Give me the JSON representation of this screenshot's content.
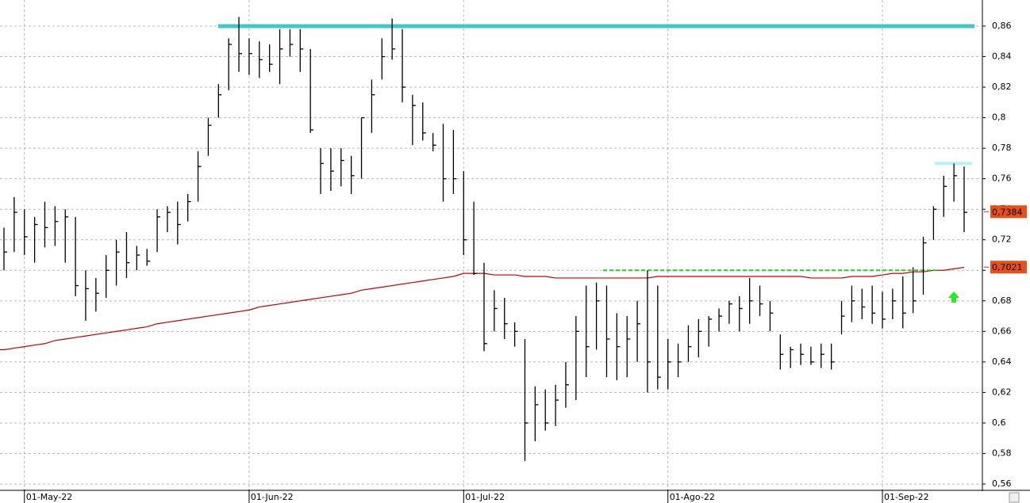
{
  "chart_data": {
    "type": "ohlc",
    "categories": [
      null,
      null,
      "01-May-22",
      null,
      null,
      null,
      null,
      null,
      null,
      null,
      null,
      null,
      null,
      null,
      null,
      null,
      null,
      null,
      null,
      null,
      null,
      null,
      null,
      null,
      "01-Jun-22",
      null,
      null,
      null,
      null,
      null,
      null,
      null,
      null,
      null,
      null,
      null,
      null,
      null,
      null,
      null,
      null,
      null,
      null,
      null,
      null,
      "01-Jul-22",
      null,
      null,
      null,
      null,
      null,
      null,
      null,
      null,
      null,
      null,
      null,
      null,
      null,
      null,
      null,
      null,
      null,
      null,
      null,
      "01-Ago-22",
      null,
      null,
      null,
      null,
      null,
      null,
      null,
      null,
      null,
      null,
      null,
      null,
      null,
      null,
      null,
      null,
      null,
      null,
      null,
      null,
      "01-Sep-22",
      null,
      null,
      null,
      null,
      null,
      null,
      null,
      null
    ],
    "bars": {
      "color": "#000000",
      "high": [
        0.728,
        0.748,
        0.74,
        0.735,
        0.745,
        0.742,
        0.74,
        0.735,
        0.7,
        0.695,
        0.71,
        0.72,
        0.725,
        0.716,
        0.714,
        0.74,
        0.742,
        0.745,
        0.75,
        0.778,
        0.8,
        0.822,
        0.852,
        0.866,
        0.852,
        0.85,
        0.848,
        0.858,
        0.858,
        0.858,
        0.845,
        0.78,
        0.78,
        0.78,
        0.775,
        0.8,
        0.825,
        0.852,
        0.865,
        0.858,
        0.815,
        0.81,
        0.79,
        0.796,
        0.792,
        0.765,
        0.745,
        0.705,
        0.687,
        0.682,
        0.666,
        0.655,
        0.624,
        0.622,
        0.625,
        0.64,
        0.67,
        0.69,
        0.692,
        0.69,
        0.672,
        0.67,
        0.68,
        0.7,
        0.69,
        0.655,
        0.652,
        0.664,
        0.668,
        0.67,
        0.675,
        0.68,
        0.683,
        0.695,
        0.69,
        0.68,
        0.658,
        0.65,
        0.652,
        0.65,
        0.652,
        0.652,
        0.68,
        0.69,
        0.688,
        0.69,
        0.686,
        0.688,
        0.696,
        0.702,
        0.722,
        0.742,
        0.762,
        0.77,
        0.768
      ],
      "low": [
        0.7,
        0.712,
        0.71,
        0.705,
        0.715,
        0.716,
        0.705,
        0.683,
        0.667,
        0.673,
        0.682,
        0.69,
        0.695,
        0.7,
        0.703,
        0.712,
        0.725,
        0.717,
        0.732,
        0.745,
        0.775,
        0.8,
        0.818,
        0.83,
        0.828,
        0.826,
        0.83,
        0.822,
        0.84,
        0.83,
        0.79,
        0.75,
        0.752,
        0.755,
        0.75,
        0.76,
        0.79,
        0.825,
        0.838,
        0.81,
        0.782,
        0.785,
        0.778,
        0.745,
        0.75,
        0.71,
        0.697,
        0.647,
        0.66,
        0.655,
        0.65,
        0.575,
        0.588,
        0.595,
        0.598,
        0.61,
        0.615,
        0.63,
        0.648,
        0.63,
        0.628,
        0.63,
        0.64,
        0.62,
        0.622,
        0.622,
        0.63,
        0.64,
        0.643,
        0.65,
        0.66,
        0.665,
        0.66,
        0.665,
        0.67,
        0.66,
        0.635,
        0.636,
        0.638,
        0.638,
        0.636,
        0.635,
        0.658,
        0.666,
        0.668,
        0.665,
        0.662,
        0.668,
        0.662,
        0.672,
        0.684,
        0.72,
        0.735,
        0.745,
        0.725
      ],
      "close": [
        0.712,
        0.738,
        0.722,
        0.73,
        0.728,
        0.732,
        0.735,
        0.69,
        0.688,
        0.685,
        0.7,
        0.712,
        0.705,
        0.71,
        0.706,
        0.735,
        0.738,
        0.73,
        0.745,
        0.768,
        0.795,
        0.815,
        0.848,
        0.842,
        0.842,
        0.838,
        0.835,
        0.845,
        0.848,
        0.845,
        0.792,
        0.77,
        0.765,
        0.772,
        0.762,
        0.8,
        0.815,
        0.84,
        0.845,
        0.82,
        0.808,
        0.79,
        0.782,
        0.76,
        0.76,
        0.72,
        0.698,
        0.652,
        0.675,
        0.665,
        0.66,
        0.6,
        0.612,
        0.6,
        0.615,
        0.625,
        0.66,
        0.65,
        0.68,
        0.655,
        0.65,
        0.655,
        0.665,
        0.64,
        0.63,
        0.64,
        0.64,
        0.65,
        0.66,
        0.668,
        0.67,
        0.678,
        0.675,
        0.68,
        0.678,
        0.672,
        0.645,
        0.648,
        0.645,
        0.64,
        0.645,
        0.64,
        0.67,
        0.68,
        0.676,
        0.672,
        0.668,
        0.68,
        0.672,
        0.68,
        0.718,
        0.74,
        0.755,
        0.762,
        0.738
      ]
    },
    "moving_average": {
      "color": "#c00000",
      "values": [
        0.648,
        0.649,
        0.65,
        0.651,
        0.652,
        0.654,
        0.655,
        0.656,
        0.657,
        0.658,
        0.659,
        0.66,
        0.661,
        0.662,
        0.663,
        0.665,
        0.666,
        0.667,
        0.668,
        0.669,
        0.67,
        0.671,
        0.672,
        0.673,
        0.674,
        0.676,
        0.677,
        0.678,
        0.679,
        0.68,
        0.681,
        0.682,
        0.683,
        0.684,
        0.685,
        0.687,
        0.688,
        0.689,
        0.69,
        0.691,
        0.692,
        0.693,
        0.694,
        0.695,
        0.696,
        0.698,
        0.698,
        0.698,
        0.697,
        0.697,
        0.697,
        0.696,
        0.696,
        0.696,
        0.695,
        0.695,
        0.695,
        0.695,
        0.695,
        0.695,
        0.695,
        0.695,
        0.695,
        0.695,
        0.696,
        0.696,
        0.696,
        0.696,
        0.696,
        0.696,
        0.696,
        0.696,
        0.696,
        0.696,
        0.696,
        0.696,
        0.696,
        0.696,
        0.696,
        0.695,
        0.695,
        0.695,
        0.695,
        0.696,
        0.696,
        0.696,
        0.697,
        0.698,
        0.698,
        0.699,
        0.699,
        0.7,
        0.7,
        0.701,
        0.702
      ]
    },
    "levels": [
      {
        "value": 0.86,
        "color": "#40c8c8",
        "style": "solid"
      },
      {
        "value": 0.77,
        "color": "#b8f0f4",
        "style": "solid"
      },
      {
        "value": 0.7,
        "color": "#22cc22",
        "style": "dashed"
      }
    ],
    "price_tags": [
      {
        "value": 0.7384,
        "label": "0,7384",
        "color": "#e8501a"
      },
      {
        "value": 0.7021,
        "label": "0,7021",
        "color": "#e8501a"
      }
    ],
    "ylim": [
      0.5564,
      0.8771
    ],
    "yticks": [
      {
        "value": 0.56,
        "label": "0,56"
      },
      {
        "value": 0.58,
        "label": "0,58"
      },
      {
        "value": 0.6,
        "label": "0,6"
      },
      {
        "value": 0.62,
        "label": "0,62"
      },
      {
        "value": 0.64,
        "label": "0,64"
      },
      {
        "value": 0.66,
        "label": "0,66"
      },
      {
        "value": 0.68,
        "label": "0,68"
      },
      {
        "value": 0.7,
        "label": "0,7"
      },
      {
        "value": 0.72,
        "label": "0,72"
      },
      {
        "value": 0.74,
        "label": "0,74"
      },
      {
        "value": 0.76,
        "label": "0,76"
      },
      {
        "value": 0.78,
        "label": "0,78"
      },
      {
        "value": 0.8,
        "label": "0,8"
      },
      {
        "value": 0.82,
        "label": "0,82"
      },
      {
        "value": 0.84,
        "label": "0,84"
      },
      {
        "value": 0.86,
        "label": "0,86"
      }
    ],
    "grid": true
  }
}
